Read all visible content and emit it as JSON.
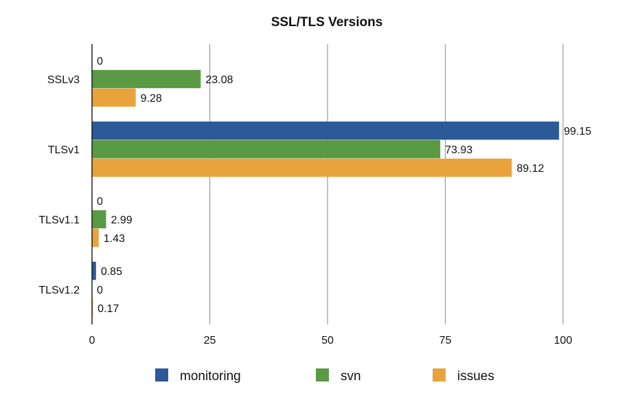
{
  "chart_data": {
    "type": "bar",
    "orientation": "horizontal",
    "title": "SSL/TLS Versions",
    "categories": [
      "SSLv3",
      "TLSv1",
      "TLSv1.1",
      "TLSv1.2"
    ],
    "series": [
      {
        "name": "monitoring",
        "color": "#2c5a99",
        "values": [
          0,
          99.15,
          0,
          0.85
        ],
        "labels": [
          "0",
          "99.15",
          "0",
          "0.85"
        ]
      },
      {
        "name": "svn",
        "color": "#5a9a45",
        "values": [
          23.08,
          73.93,
          2.99,
          0
        ],
        "labels": [
          "23.08",
          "73.93",
          "2.99",
          "0"
        ]
      },
      {
        "name": "issues",
        "color": "#e9a33c",
        "values": [
          9.28,
          89.12,
          1.43,
          0.17
        ],
        "labels": [
          "9.28",
          "89.12",
          "1.43",
          "0.17"
        ]
      }
    ],
    "xlim": [
      0,
      100
    ],
    "xticks": [
      0,
      25,
      50,
      75,
      100
    ],
    "xtick_labels": [
      "0",
      "25",
      "50",
      "75",
      "100"
    ],
    "grid": "vertical",
    "legend": "bottom"
  }
}
